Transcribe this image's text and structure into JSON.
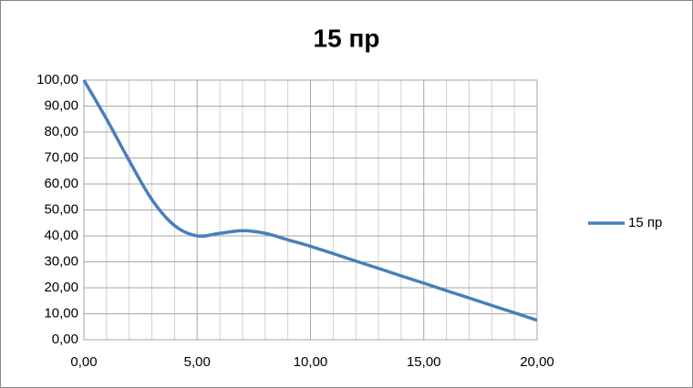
{
  "chart_data": {
    "type": "line",
    "title": "15 пр",
    "x": [
      0,
      1,
      2,
      3,
      4,
      5,
      6,
      7,
      8,
      9,
      10,
      11,
      12,
      13,
      14,
      15,
      16,
      17,
      18,
      19,
      20
    ],
    "series": [
      {
        "name": "15 пр",
        "color": "#4a7ebb",
        "values": [
          100,
          85,
          69,
          54,
          44,
          40,
          41,
          42,
          41,
          38.5,
          36,
          33.2,
          30.3,
          27.5,
          24.6,
          21.8,
          18.9,
          16.1,
          13.2,
          10.4,
          7.5
        ]
      }
    ],
    "xlim": [
      0,
      20
    ],
    "xticks": [
      {
        "value": 0,
        "label": "0,00"
      },
      {
        "value": 5,
        "label": "5,00"
      },
      {
        "value": 10,
        "label": "10,00"
      },
      {
        "value": 15,
        "label": "15,00"
      },
      {
        "value": 20,
        "label": "20,00"
      }
    ],
    "xminorticks": [
      1,
      2,
      3,
      4,
      6,
      7,
      8,
      9,
      11,
      12,
      13,
      14,
      16,
      17,
      18,
      19
    ],
    "ylim": [
      0,
      100
    ],
    "yticks": [
      {
        "value": 0,
        "label": "0,00"
      },
      {
        "value": 10,
        "label": "10,00"
      },
      {
        "value": 20,
        "label": "20,00"
      },
      {
        "value": 30,
        "label": "30,00"
      },
      {
        "value": 40,
        "label": "40,00"
      },
      {
        "value": 50,
        "label": "50,00"
      },
      {
        "value": 60,
        "label": "60,00"
      },
      {
        "value": 70,
        "label": "70,00"
      },
      {
        "value": 80,
        "label": "80,00"
      },
      {
        "value": 90,
        "label": "90,00"
      },
      {
        "value": 100,
        "label": "100,00"
      }
    ],
    "grid": true,
    "legend": "right"
  }
}
